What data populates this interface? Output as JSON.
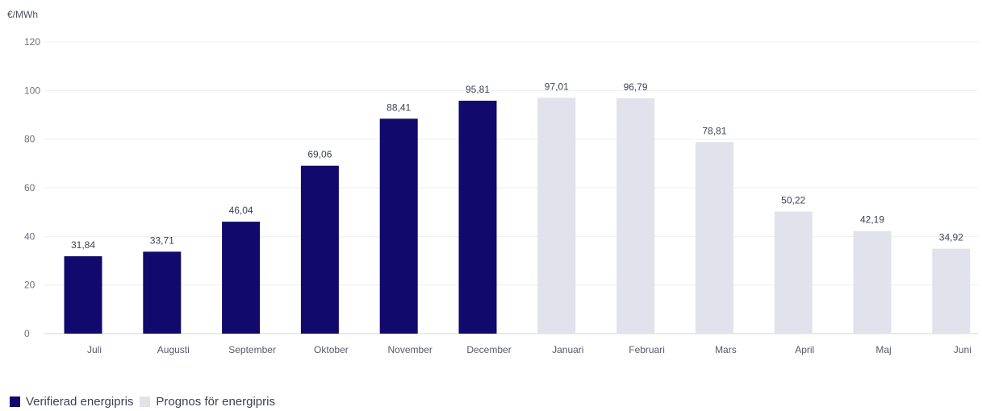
{
  "chart_data": {
    "type": "bar",
    "ylabel": "€/MWh",
    "ylim": [
      0,
      120
    ],
    "yticks": [
      "0",
      "20",
      "40",
      "60",
      "80",
      "100",
      "120"
    ],
    "grid": true,
    "legend_position": "bottom-left",
    "categories": [
      "Juli",
      "Augusti",
      "September",
      "Oktober",
      "November",
      "December",
      "Januari",
      "Februari",
      "Mars",
      "April",
      "Maj",
      "Juni"
    ],
    "values": [
      31.84,
      33.71,
      46.04,
      69.06,
      88.41,
      95.81,
      97.01,
      96.79,
      78.81,
      50.22,
      42.19,
      34.92
    ],
    "labels": [
      "31,84",
      "33,71",
      "46,04",
      "69,06",
      "88,41",
      "95,81",
      "97,01",
      "96,79",
      "78,81",
      "50,22",
      "42,19",
      "34,92"
    ],
    "series": [
      {
        "name": "Verifierad energipris",
        "color": "#11096b",
        "indices": [
          0,
          1,
          2,
          3,
          4,
          5
        ]
      },
      {
        "name": "Prognos för energipris",
        "color": "#e1e2eb",
        "indices": [
          6,
          7,
          8,
          9,
          10,
          11
        ]
      }
    ]
  },
  "legend": {
    "items": [
      {
        "label": "Verifierad energipris",
        "color": "#11096b"
      },
      {
        "label": "Prognos för energipris",
        "color": "#e1e2eb"
      }
    ]
  }
}
